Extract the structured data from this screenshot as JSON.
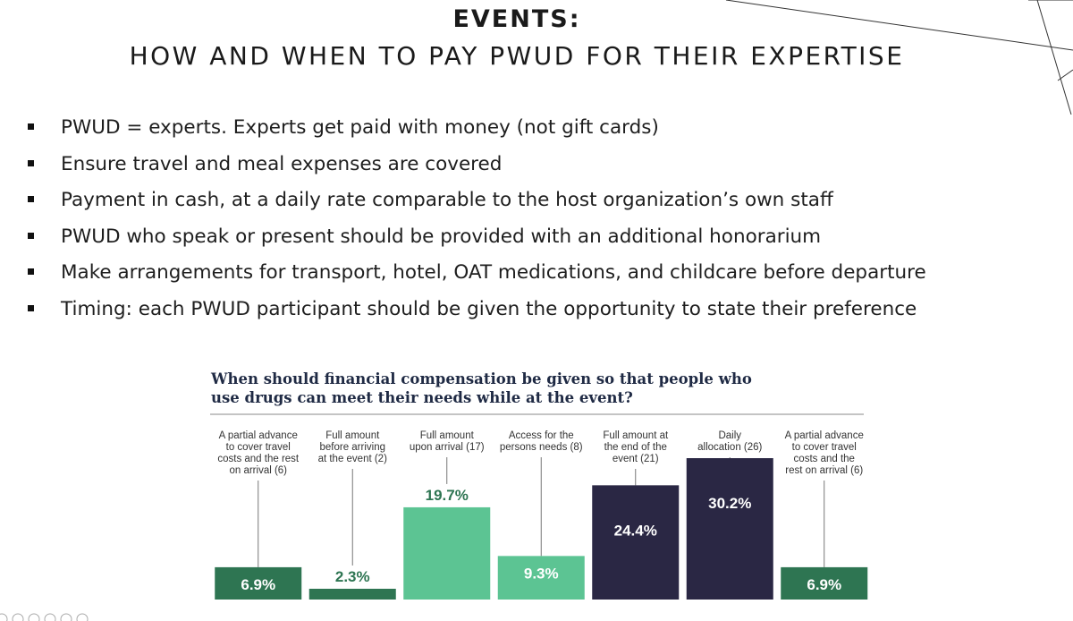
{
  "slide": {
    "title_line1": "EVENTS:",
    "title_line2": "HOW AND WHEN TO PAY PWUD FOR THEIR EXPERTISE",
    "bullets": [
      "PWUD = experts.  Experts get paid with money (not gift cards)",
      "Ensure travel and meal expenses are covered",
      "Payment in cash, at a daily rate comparable to the host organization’s own staff",
      "PWUD who speak or present should be provided with an additional honorarium",
      "Make arrangements for transport, hotel, OAT medications, and childcare before departure",
      "Timing: each PWUD participant should be given the opportunity to state their preference"
    ]
  },
  "chart_data": {
    "type": "bar",
    "title": "When should financial compensation be given so that people who use drugs can meet their needs while at the event?",
    "categories": [
      "A partial advance to cover travel costs and the rest on arrival (6)",
      "Full amount before arriving at the event (2)",
      "Full amount upon arrival (17)",
      "Access for the persons needs (8)",
      "Full amount at the end of the event (21)",
      "Daily allocation (26)",
      "A partial advance to cover travel costs and the rest on arrival (6)"
    ],
    "category_lines": [
      [
        "A partial advance",
        "to cover travel",
        "costs and the rest",
        "on arrival (6)"
      ],
      [
        "Full amount",
        "before arriving",
        "at the event (2)"
      ],
      [
        "Full amount",
        "upon arrival (17)"
      ],
      [
        "Access for the",
        "persons needs (8)"
      ],
      [
        "Full amount at",
        "the end of the",
        "event (21)"
      ],
      [
        "Daily",
        "allocation (26)"
      ],
      [
        "A partial advance",
        "to cover travel",
        "costs and the",
        "rest on arrival (6)"
      ]
    ],
    "values": [
      6.9,
      2.3,
      19.7,
      9.3,
      24.4,
      30.2,
      6.9
    ],
    "value_labels": [
      "6.9%",
      "2.3%",
      "19.7%",
      "9.3%",
      "24.4%",
      "30.2%",
      "6.9%"
    ],
    "bar_colors": [
      "#2e7552",
      "#2e7552",
      "#5cc493",
      "#5cc493",
      "#2a2744",
      "#2a2744",
      "#2e7552"
    ],
    "value_label_colors": [
      "#ffffff",
      "#2e7552",
      "#2e7552",
      "#ffffff",
      "#ffffff",
      "#ffffff",
      "#ffffff"
    ],
    "ylim": [
      0,
      30.2
    ],
    "grid": false,
    "legend": "none"
  }
}
